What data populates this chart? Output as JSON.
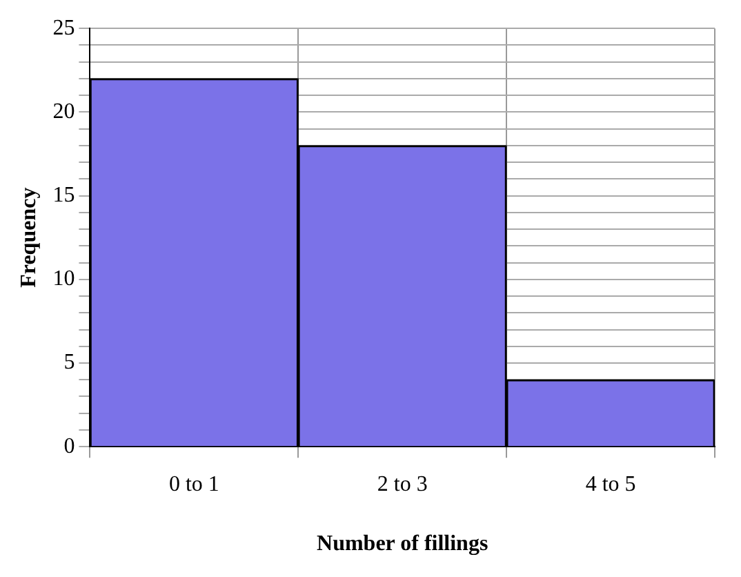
{
  "chart_data": {
    "type": "bar",
    "xlabel": "Number of fillings",
    "ylabel": "Frequency",
    "categories": [
      "0 to 1",
      "2 to 3",
      "4 to 5"
    ],
    "values": [
      22,
      18,
      4
    ],
    "color": "#7b72e8",
    "ylim": [
      0,
      25
    ],
    "yticks": [
      0,
      {
        "value": 1,
        "label": null
      },
      {
        "value": 2,
        "label": null
      },
      {
        "value": 3,
        "label": null
      },
      {
        "value": 4,
        "label": null
      },
      5,
      {
        "value": 6,
        "label": null
      },
      {
        "value": 7,
        "label": null
      },
      {
        "value": 8,
        "label": null
      },
      {
        "value": 9,
        "label": null
      },
      10,
      {
        "value": 11,
        "label": null
      },
      {
        "value": 12,
        "label": null
      },
      {
        "value": 13,
        "label": null
      },
      {
        "value": 14,
        "label": null
      },
      15,
      {
        "value": 16,
        "label": null
      },
      {
        "value": 17,
        "label": null
      },
      {
        "value": 18,
        "label": null
      },
      {
        "value": 19,
        "label": null
      },
      20,
      {
        "value": 21,
        "label": null
      },
      {
        "value": 22,
        "label": null
      },
      {
        "value": 23,
        "label": null
      },
      {
        "value": 24,
        "label": null
      },
      25
    ],
    "grid": true
  }
}
